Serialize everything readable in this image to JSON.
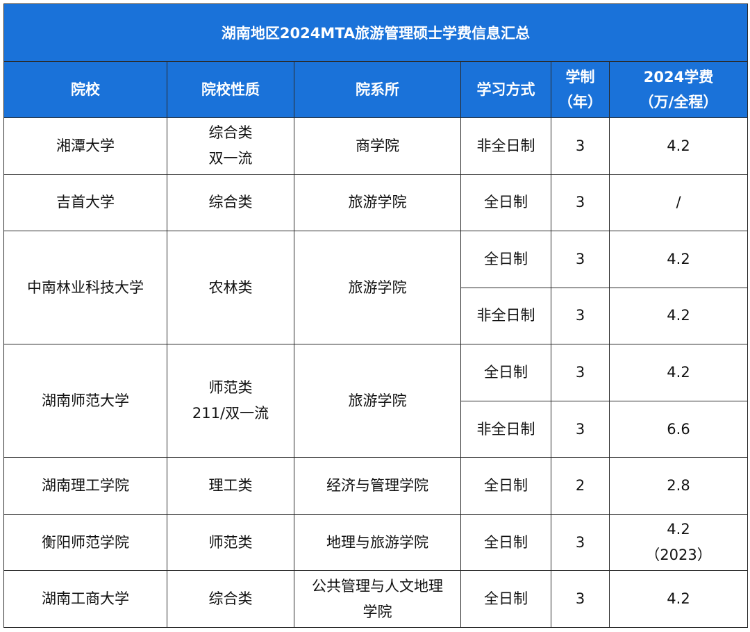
{
  "title": "湖南地区2024MTA旅游管理硕士学费信息汇总",
  "headers": {
    "school": "院校",
    "nature": "院校性质",
    "department": "院系所",
    "mode": "学习方式",
    "years_line1": "学制",
    "years_line2": "（年）",
    "fee_line1": "2024学费",
    "fee_line2": "（万/全程）"
  },
  "rows": [
    {
      "school": "湘潭大学",
      "nature_line1": "综合类",
      "nature_line2": "双一流",
      "department": "商学院",
      "mode": "非全日制",
      "years": "3",
      "fee": "4.2"
    },
    {
      "school": "吉首大学",
      "nature": "综合类",
      "department": "旅游学院",
      "mode": "全日制",
      "years": "3",
      "fee": "/"
    },
    {
      "school": "中南林业科技大学",
      "nature": "农林类",
      "department": "旅游学院",
      "mode_a": "全日制",
      "years_a": "3",
      "fee_a": "4.2",
      "mode_b": "非全日制",
      "years_b": "3",
      "fee_b": "4.2"
    },
    {
      "school": "湖南师范大学",
      "nature_line1": "师范类",
      "nature_line2": "211/双一流",
      "department": "旅游学院",
      "mode_a": "全日制",
      "years_a": "3",
      "fee_a": "4.2",
      "mode_b": "非全日制",
      "years_b": "3",
      "fee_b": "6.6"
    },
    {
      "school": "湖南理工学院",
      "nature": "理工类",
      "department": "经济与管理学院",
      "mode": "全日制",
      "years": "2",
      "fee": "2.8"
    },
    {
      "school": "衡阳师范学院",
      "nature": "师范类",
      "department": "地理与旅游学院",
      "mode": "全日制",
      "years": "3",
      "fee_line1": "4.2",
      "fee_line2": "（2023）"
    },
    {
      "school": "湖南工商大学",
      "nature": "综合类",
      "department_line1": "公共管理与人文地理",
      "department_line2": "学院",
      "mode": "全日制",
      "years": "3",
      "fee": "4.2"
    }
  ]
}
